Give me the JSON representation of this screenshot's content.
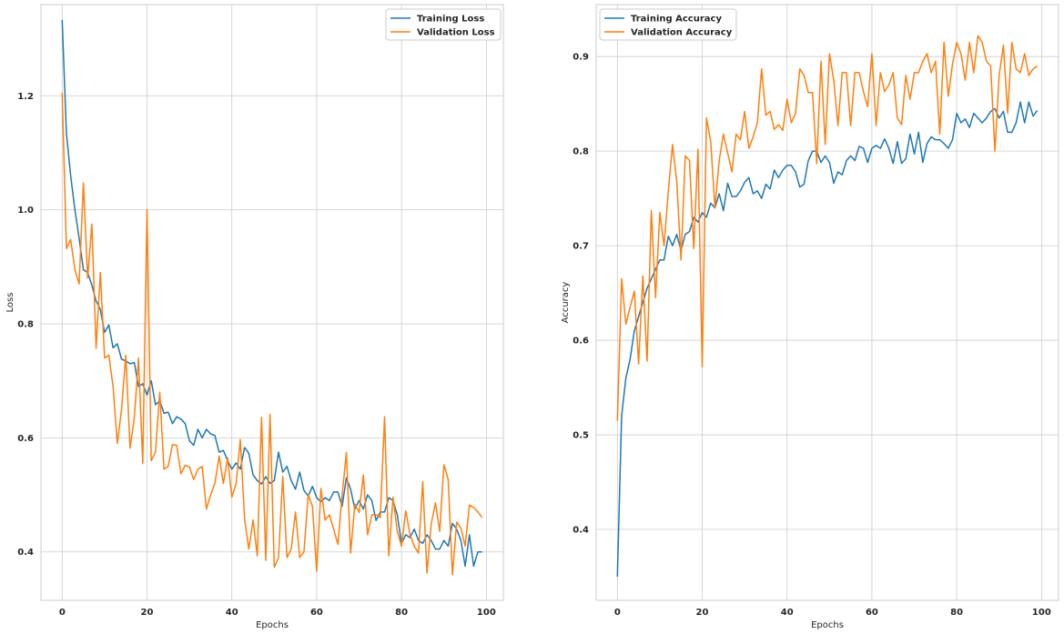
{
  "chart_data": [
    {
      "type": "line",
      "title": "",
      "xlabel": "Epochs",
      "ylabel": "Loss",
      "xlim": [
        -5,
        104
      ],
      "ylim": [
        0.315,
        1.36
      ],
      "xticks": [
        0,
        20,
        40,
        60,
        80,
        100
      ],
      "yticks": [
        0.4,
        0.6,
        0.8,
        1.0,
        1.2
      ],
      "ytick_labels": [
        "0.4",
        "0.6",
        "0.8",
        "1.0",
        "1.2"
      ],
      "grid": true,
      "legend_position": "upper right",
      "series": [
        {
          "name": "Training Loss",
          "color": "#1f77b4",
          "values": [
            1.333,
            1.135,
            1.06,
            1.0,
            0.95,
            0.895,
            0.89,
            0.868,
            0.84,
            0.825,
            0.785,
            0.798,
            0.758,
            0.765,
            0.738,
            0.735,
            0.73,
            0.732,
            0.69,
            0.695,
            0.675,
            0.7,
            0.658,
            0.665,
            0.643,
            0.645,
            0.625,
            0.637,
            0.633,
            0.625,
            0.595,
            0.587,
            0.615,
            0.6,
            0.615,
            0.607,
            0.604,
            0.575,
            0.578,
            0.56,
            0.545,
            0.556,
            0.545,
            0.583,
            0.573,
            0.535,
            0.525,
            0.519,
            0.532,
            0.52,
            0.525,
            0.575,
            0.54,
            0.55,
            0.525,
            0.51,
            0.54,
            0.508,
            0.498,
            0.515,
            0.495,
            0.488,
            0.495,
            0.49,
            0.505,
            0.505,
            0.48,
            0.53,
            0.51,
            0.475,
            0.49,
            0.475,
            0.5,
            0.49,
            0.455,
            0.47,
            0.47,
            0.495,
            0.49,
            0.465,
            0.415,
            0.43,
            0.425,
            0.44,
            0.42,
            0.415,
            0.43,
            0.42,
            0.405,
            0.405,
            0.42,
            0.41,
            0.45,
            0.44,
            0.42,
            0.375,
            0.43,
            0.375,
            0.4,
            0.4
          ]
        },
        {
          "name": "Validation Loss",
          "color": "#ff7f0e",
          "values": [
            1.205,
            0.932,
            0.948,
            0.895,
            0.87,
            1.047,
            0.88,
            0.975,
            0.757,
            0.89,
            0.74,
            0.745,
            0.69,
            0.59,
            0.65,
            0.745,
            0.582,
            0.635,
            0.74,
            0.555,
            1.0,
            0.56,
            0.575,
            0.68,
            0.545,
            0.55,
            0.588,
            0.587,
            0.537,
            0.552,
            0.549,
            0.527,
            0.545,
            0.55,
            0.475,
            0.5,
            0.52,
            0.568,
            0.52,
            0.565,
            0.496,
            0.52,
            0.597,
            0.458,
            0.405,
            0.456,
            0.393,
            0.636,
            0.385,
            0.641,
            0.373,
            0.39,
            0.532,
            0.39,
            0.405,
            0.47,
            0.39,
            0.4,
            0.5,
            0.48,
            0.366,
            0.511,
            0.456,
            0.465,
            0.44,
            0.413,
            0.5,
            0.574,
            0.398,
            0.484,
            0.469,
            0.535,
            0.43,
            0.465,
            0.465,
            0.46,
            0.637,
            0.393,
            0.496,
            0.436,
            0.41,
            0.472,
            0.43,
            0.41,
            0.398,
            0.523,
            0.363,
            0.449,
            0.486,
            0.436,
            0.553,
            0.527,
            0.36,
            0.452,
            0.442,
            0.41,
            0.482,
            0.478,
            0.47,
            0.46
          ]
        }
      ]
    },
    {
      "type": "line",
      "title": "",
      "xlabel": "Epochs",
      "ylabel": "Accuracy",
      "xlim": [
        -5,
        104
      ],
      "ylim": [
        0.325,
        0.955
      ],
      "xticks": [
        0,
        20,
        40,
        60,
        80,
        100
      ],
      "yticks": [
        0.4,
        0.5,
        0.6,
        0.7,
        0.8,
        0.9
      ],
      "ytick_labels": [
        "0.4",
        "0.5",
        "0.6",
        "0.7",
        "0.8",
        "0.9"
      ],
      "grid": true,
      "legend_position": "upper left",
      "series": [
        {
          "name": "Training Accuracy",
          "color": "#1f77b4",
          "values": [
            0.35,
            0.52,
            0.56,
            0.58,
            0.61,
            0.625,
            0.64,
            0.655,
            0.665,
            0.675,
            0.685,
            0.685,
            0.71,
            0.7,
            0.712,
            0.695,
            0.712,
            0.715,
            0.73,
            0.725,
            0.735,
            0.73,
            0.745,
            0.74,
            0.755,
            0.737,
            0.766,
            0.752,
            0.752,
            0.758,
            0.767,
            0.772,
            0.755,
            0.758,
            0.75,
            0.765,
            0.76,
            0.78,
            0.772,
            0.78,
            0.785,
            0.785,
            0.778,
            0.762,
            0.765,
            0.79,
            0.8,
            0.8,
            0.788,
            0.795,
            0.788,
            0.766,
            0.778,
            0.775,
            0.79,
            0.795,
            0.79,
            0.805,
            0.803,
            0.788,
            0.803,
            0.806,
            0.803,
            0.813,
            0.803,
            0.787,
            0.81,
            0.787,
            0.792,
            0.818,
            0.797,
            0.82,
            0.788,
            0.808,
            0.815,
            0.812,
            0.812,
            0.808,
            0.803,
            0.812,
            0.84,
            0.83,
            0.834,
            0.825,
            0.84,
            0.835,
            0.83,
            0.835,
            0.842,
            0.845,
            0.835,
            0.842,
            0.82,
            0.82,
            0.83,
            0.852,
            0.83,
            0.852,
            0.837,
            0.843
          ]
        },
        {
          "name": "Validation Accuracy",
          "color": "#ff7f0e",
          "values": [
            0.515,
            0.665,
            0.617,
            0.635,
            0.652,
            0.575,
            0.668,
            0.578,
            0.737,
            0.645,
            0.735,
            0.7,
            0.757,
            0.807,
            0.768,
            0.685,
            0.795,
            0.79,
            0.697,
            0.802,
            0.572,
            0.835,
            0.81,
            0.74,
            0.79,
            0.818,
            0.798,
            0.778,
            0.818,
            0.812,
            0.842,
            0.803,
            0.815,
            0.83,
            0.887,
            0.838,
            0.842,
            0.823,
            0.828,
            0.822,
            0.855,
            0.83,
            0.84,
            0.887,
            0.88,
            0.862,
            0.862,
            0.787,
            0.895,
            0.807,
            0.903,
            0.875,
            0.827,
            0.883,
            0.883,
            0.827,
            0.883,
            0.883,
            0.863,
            0.847,
            0.903,
            0.827,
            0.883,
            0.863,
            0.87,
            0.883,
            0.835,
            0.828,
            0.88,
            0.855,
            0.883,
            0.883,
            0.895,
            0.903,
            0.883,
            0.895,
            0.818,
            0.915,
            0.858,
            0.892,
            0.915,
            0.903,
            0.875,
            0.915,
            0.883,
            0.922,
            0.915,
            0.895,
            0.89,
            0.8,
            0.88,
            0.912,
            0.84,
            0.915,
            0.887,
            0.883,
            0.903,
            0.88,
            0.887,
            0.89
          ]
        }
      ]
    }
  ]
}
